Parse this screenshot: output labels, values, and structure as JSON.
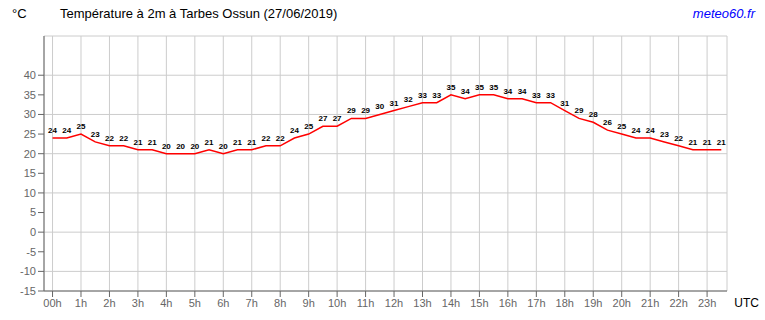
{
  "chart_data": {
    "type": "line",
    "title": "Température à 2m à Tarbes Ossun (27/06/2019)",
    "xlabel": "UTC",
    "ylabel": "°C",
    "annotations": [
      {
        "text": "meteo60.fr",
        "color": "#0000ff"
      }
    ],
    "x": [
      0,
      0.5,
      1,
      1.5,
      2,
      2.5,
      3,
      3.5,
      4,
      4.5,
      5,
      5.5,
      6,
      6.5,
      7,
      7.5,
      8,
      8.5,
      9,
      9.5,
      10,
      10.5,
      11,
      11.5,
      12,
      12.5,
      13,
      13.5,
      14,
      14.5,
      15,
      15.5,
      16,
      16.5,
      17,
      17.5,
      18,
      18.5,
      19,
      19.5,
      20,
      20.5,
      21,
      21.5,
      22,
      22.5,
      23,
      23.5
    ],
    "values": [
      24,
      24,
      25,
      23,
      22,
      22,
      21,
      21,
      20,
      20,
      20,
      21,
      20,
      21,
      21,
      22,
      22,
      24,
      25,
      27,
      27,
      29,
      29,
      30,
      31,
      32,
      33,
      33,
      35,
      34,
      35,
      35,
      34,
      34,
      33,
      33,
      31,
      29,
      28,
      26,
      25,
      24,
      24,
      23,
      22,
      21,
      21,
      21
    ],
    "color": "#ff0000",
    "xlim": [
      -0.3,
      23.7
    ],
    "xticks": [
      {
        "value": 0,
        "label": "00h"
      },
      {
        "value": 1,
        "label": "1h"
      },
      {
        "value": 2,
        "label": "2h"
      },
      {
        "value": 3,
        "label": "3h"
      },
      {
        "value": 4,
        "label": "4h"
      },
      {
        "value": 5,
        "label": "5h"
      },
      {
        "value": 6,
        "label": "6h"
      },
      {
        "value": 7,
        "label": "7h"
      },
      {
        "value": 8,
        "label": "8h"
      },
      {
        "value": 9,
        "label": "9h"
      },
      {
        "value": 10,
        "label": "10h"
      },
      {
        "value": 11,
        "label": "11h"
      },
      {
        "value": 12,
        "label": "12h"
      },
      {
        "value": 13,
        "label": "13h"
      },
      {
        "value": 14,
        "label": "14h"
      },
      {
        "value": 15,
        "label": "15h"
      },
      {
        "value": 16,
        "label": "16h"
      },
      {
        "value": 17,
        "label": "17h"
      },
      {
        "value": 18,
        "label": "18h"
      },
      {
        "value": 19,
        "label": "19h"
      },
      {
        "value": 20,
        "label": "20h"
      },
      {
        "value": 21,
        "label": "21h"
      },
      {
        "value": 22,
        "label": "22h"
      },
      {
        "value": 23,
        "label": "23h"
      }
    ],
    "ylim": [
      -15,
      50
    ],
    "yticks": [
      -15,
      -10,
      -5,
      0,
      5,
      10,
      15,
      20,
      25,
      30,
      35,
      40
    ],
    "grid": true,
    "data_labels": true
  }
}
